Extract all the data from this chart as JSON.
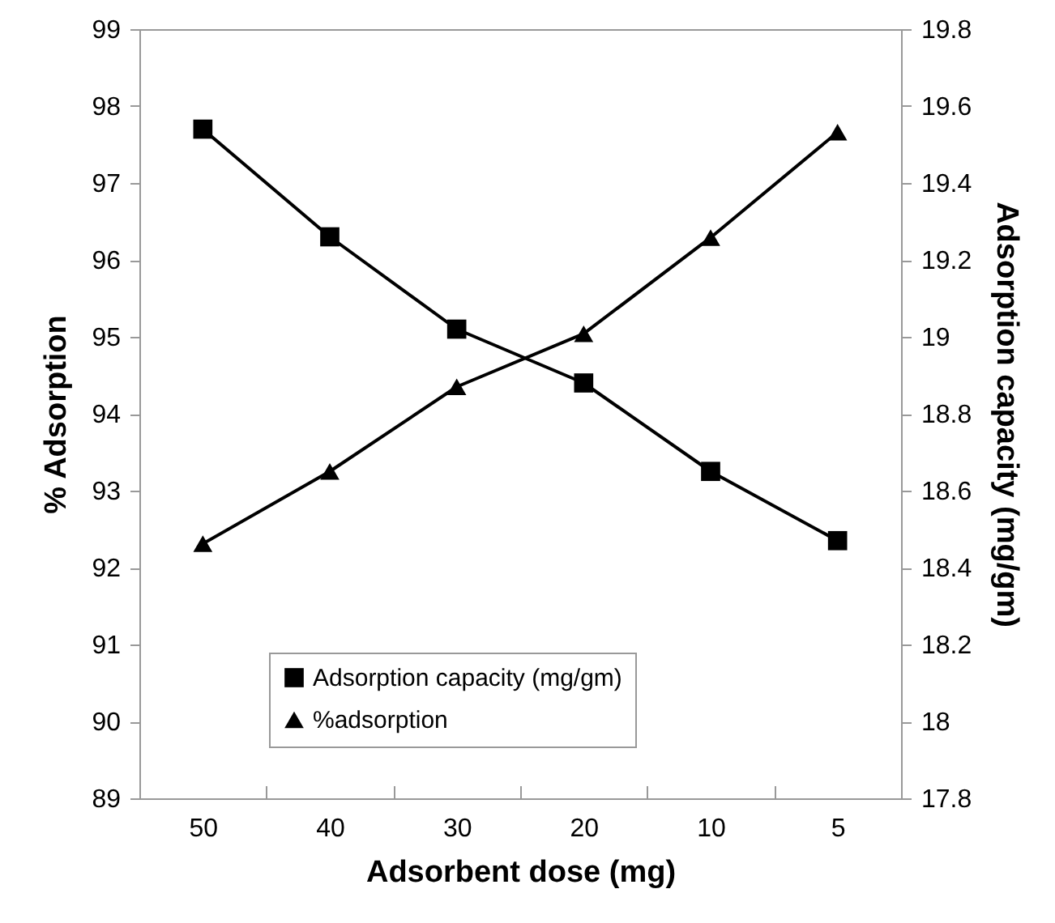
{
  "chart_data": {
    "type": "line",
    "xlabel": "Adsorbent dose (mg)",
    "ylabel": "% Adsorption",
    "y2label": "Adsorption capacity (mg/gm)",
    "categories": [
      "50",
      "40",
      "30",
      "20",
      "10",
      "5"
    ],
    "series": [
      {
        "name": "Adsorption capacity (mg/gm)",
        "color": "#000000",
        "axis": "y2",
        "marker": "square",
        "values": [
          19.54,
          19.26,
          19.02,
          18.88,
          18.65,
          18.47
        ]
      },
      {
        "name": "%adsorption",
        "color": "#000000",
        "marker": "triangle",
        "values": [
          92.31,
          93.25,
          94.35,
          95.04,
          96.29,
          97.66
        ]
      }
    ],
    "ylim": [
      89,
      99
    ],
    "yticks": [
      89,
      90,
      91,
      92,
      93,
      94,
      95,
      96,
      97,
      98,
      99
    ],
    "y2lim": [
      17.8,
      19.8
    ],
    "y2ticks": [
      17.8,
      18,
      18.2,
      18.4,
      18.6,
      18.8,
      19,
      19.2,
      19.4,
      19.6,
      19.8
    ],
    "grid": false,
    "legend": "bottom",
    "line_style": "solid"
  }
}
